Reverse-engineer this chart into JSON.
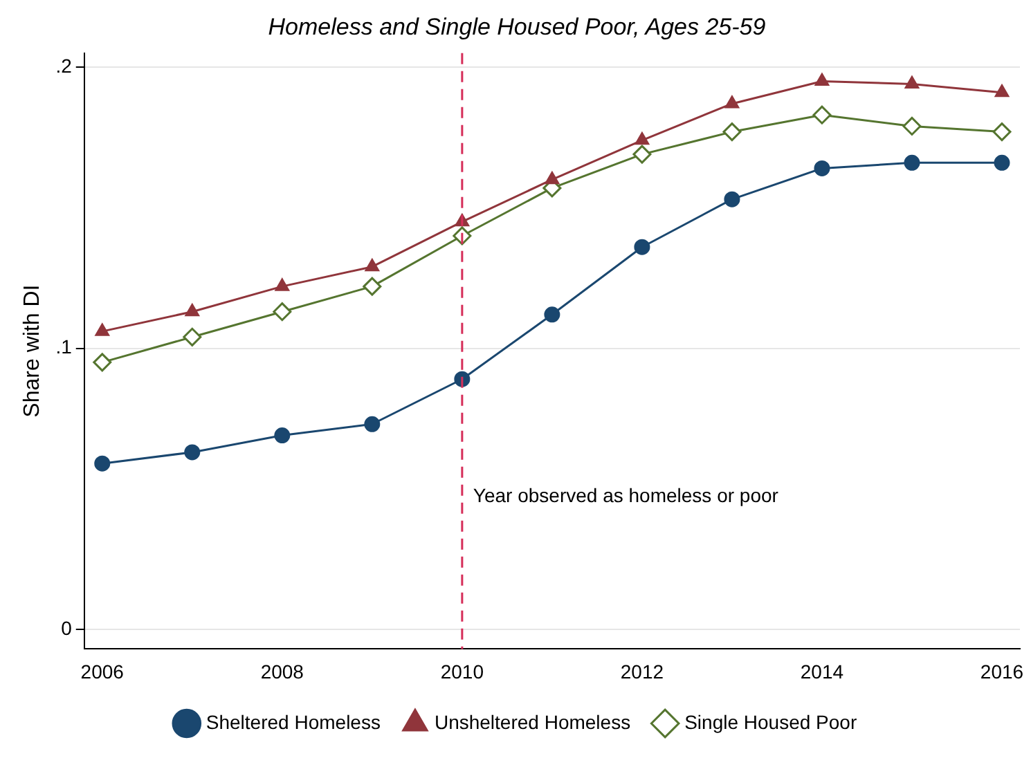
{
  "chart_data": {
    "type": "line",
    "title": "Homeless and Single Housed Poor, Ages 25-59",
    "ylabel": "Share with DI",
    "x": [
      2006,
      2007,
      2008,
      2009,
      2010,
      2011,
      2012,
      2013,
      2014,
      2015,
      2016
    ],
    "series": [
      {
        "name": "Sheltered Homeless",
        "color": "#1a476f",
        "marker": "circle",
        "values": [
          0.059,
          0.063,
          0.069,
          0.073,
          0.089,
          0.112,
          0.136,
          0.153,
          0.164,
          0.166,
          0.166
        ]
      },
      {
        "name": "Unsheltered Homeless",
        "color": "#90353b",
        "marker": "triangle",
        "values": [
          0.106,
          0.113,
          0.122,
          0.129,
          0.145,
          0.16,
          0.174,
          0.187,
          0.195,
          0.194,
          0.191
        ]
      },
      {
        "name": "Single Housed Poor",
        "color": "#55752f",
        "marker": "diamond",
        "values": [
          0.095,
          0.104,
          0.113,
          0.122,
          0.14,
          0.157,
          0.169,
          0.177,
          0.183,
          0.179,
          0.177
        ]
      }
    ],
    "xlim": [
      2005.8,
      2016.2
    ],
    "xticks": [
      2006,
      2008,
      2010,
      2012,
      2014,
      2016
    ],
    "ylim": [
      -0.007,
      0.205
    ],
    "yticks": [
      {
        "value": 0,
        "label": "0"
      },
      {
        "value": 0.1,
        "label": ".1"
      },
      {
        "value": 0.2,
        "label": ".2"
      }
    ],
    "ref_lines": [
      {
        "axis": "x",
        "value": 2010,
        "label": "Year observed as homeless or poor",
        "color": "#d62e5a",
        "line_style": "dashed"
      }
    ],
    "grid": "y",
    "legend": "bottom",
    "line_style": "solid"
  }
}
